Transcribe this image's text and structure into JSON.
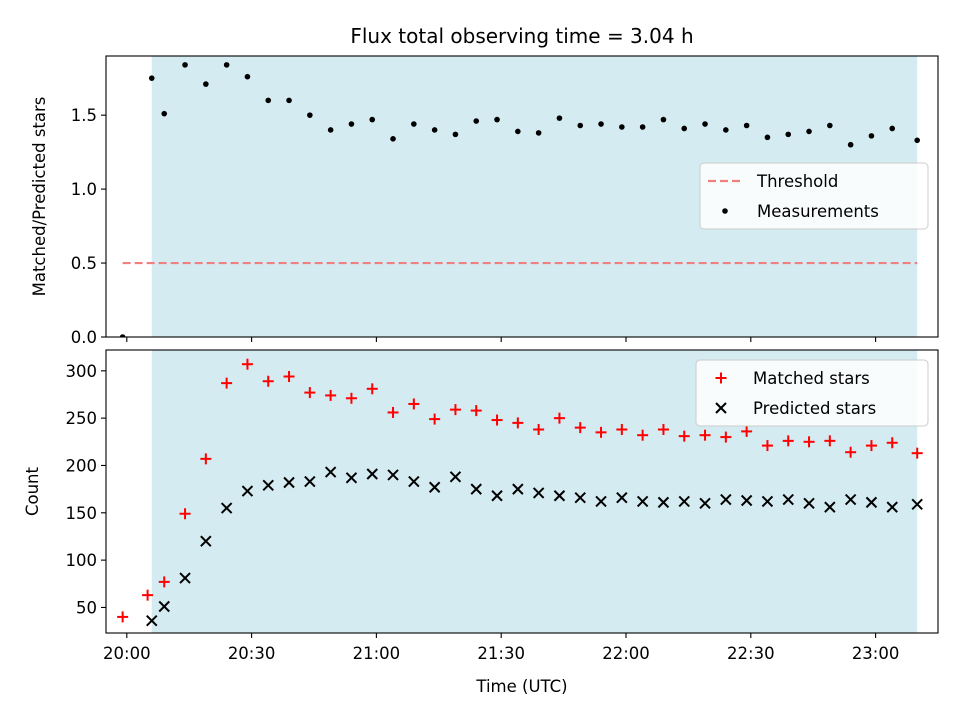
{
  "chart_data": [
    {
      "type": "scatter",
      "title": "Flux total observing time = 3.04 h",
      "xlabel": "",
      "ylabel": "Matched/Predicted stars",
      "ylim": [
        0,
        1.9
      ],
      "yticks": [
        "0.0",
        "0.5",
        "1.0",
        "1.5"
      ],
      "ytick_values": [
        0,
        0.5,
        1.0,
        1.5
      ],
      "xlim": [
        "19:55",
        "23:15"
      ],
      "xtick_values": [
        "20:00",
        "20:30",
        "21:00",
        "21:30",
        "22:00",
        "22:30",
        "23:00"
      ],
      "shaded_region": {
        "start": "20:06",
        "end": "23:10",
        "color": "#d4ebf1"
      },
      "legend_position": "center-right",
      "legend": [
        "Threshold",
        "Measurements"
      ],
      "series": [
        {
          "name": "Threshold",
          "style": "dashed-line",
          "color": "#f08080",
          "x": [
            "19:59",
            "23:10"
          ],
          "values": [
            0.5,
            0.5
          ]
        },
        {
          "name": "Measurements",
          "style": "dot",
          "color": "#000000",
          "x": [
            "19:59",
            "20:06",
            "20:09",
            "20:14",
            "20:19",
            "20:24",
            "20:29",
            "20:34",
            "20:39",
            "20:44",
            "20:49",
            "20:54",
            "20:59",
            "21:04",
            "21:09",
            "21:14",
            "21:19",
            "21:24",
            "21:29",
            "21:34",
            "21:39",
            "21:44",
            "21:49",
            "21:54",
            "21:59",
            "22:04",
            "22:09",
            "22:14",
            "22:19",
            "22:24",
            "22:29",
            "22:34",
            "22:39",
            "22:44",
            "22:49",
            "22:54",
            "22:59",
            "23:04",
            "23:10"
          ],
          "values": [
            0.0,
            1.75,
            1.51,
            1.84,
            1.71,
            1.84,
            1.76,
            1.6,
            1.6,
            1.5,
            1.4,
            1.44,
            1.47,
            1.34,
            1.44,
            1.4,
            1.37,
            1.46,
            1.47,
            1.39,
            1.38,
            1.48,
            1.43,
            1.44,
            1.42,
            1.42,
            1.47,
            1.41,
            1.44,
            1.4,
            1.43,
            1.35,
            1.37,
            1.39,
            1.43,
            1.3,
            1.36,
            1.41,
            1.33
          ]
        }
      ]
    },
    {
      "type": "scatter",
      "title": "",
      "xlabel": "Time (UTC)",
      "ylabel": "Count",
      "ylim": [
        23,
        322
      ],
      "yticks": [
        "50",
        "100",
        "150",
        "200",
        "250",
        "300"
      ],
      "ytick_values": [
        50,
        100,
        150,
        200,
        250,
        300
      ],
      "xlim": [
        "19:55",
        "23:15"
      ],
      "xticks": [
        "20:00",
        "20:30",
        "21:00",
        "21:30",
        "22:00",
        "22:30",
        "23:00"
      ],
      "shaded_region": {
        "start": "20:06",
        "end": "23:10",
        "color": "#d4ebf1"
      },
      "legend_position": "top-right",
      "legend": [
        "Matched stars",
        "Predicted stars"
      ],
      "series": [
        {
          "name": "Matched stars",
          "style": "plus",
          "color": "#ff0000",
          "x": [
            "19:59",
            "20:05",
            "20:09",
            "20:14",
            "20:19",
            "20:24",
            "20:29",
            "20:34",
            "20:39",
            "20:44",
            "20:49",
            "20:54",
            "20:59",
            "21:04",
            "21:09",
            "21:14",
            "21:19",
            "21:24",
            "21:29",
            "21:34",
            "21:39",
            "21:44",
            "21:49",
            "21:54",
            "21:59",
            "22:04",
            "22:09",
            "22:14",
            "22:19",
            "22:24",
            "22:29",
            "22:34",
            "22:39",
            "22:44",
            "22:49",
            "22:54",
            "22:59",
            "23:04",
            "23:10"
          ],
          "values": [
            40,
            63,
            77,
            149,
            207,
            287,
            307,
            289,
            294,
            277,
            274,
            271,
            281,
            256,
            265,
            249,
            259,
            258,
            248,
            245,
            238,
            250,
            240,
            235,
            238,
            232,
            238,
            231,
            232,
            230,
            236,
            221,
            226,
            225,
            226,
            214,
            221,
            224,
            213
          ]
        },
        {
          "name": "Predicted stars",
          "style": "x",
          "color": "#000000",
          "x": [
            "20:06",
            "20:09",
            "20:14",
            "20:19",
            "20:24",
            "20:29",
            "20:34",
            "20:39",
            "20:44",
            "20:49",
            "20:54",
            "20:59",
            "21:04",
            "21:09",
            "21:14",
            "21:19",
            "21:24",
            "21:29",
            "21:34",
            "21:39",
            "21:44",
            "21:49",
            "21:54",
            "21:59",
            "22:04",
            "22:09",
            "22:14",
            "22:19",
            "22:24",
            "22:29",
            "22:34",
            "22:39",
            "22:44",
            "22:49",
            "22:54",
            "22:59",
            "23:04",
            "23:10"
          ],
          "values": [
            36,
            51,
            81,
            120,
            155,
            173,
            179,
            182,
            183,
            193,
            187,
            191,
            190,
            183,
            177,
            188,
            175,
            168,
            175,
            171,
            168,
            166,
            162,
            166,
            162,
            161,
            162,
            160,
            164,
            163,
            162,
            164,
            160,
            156,
            164,
            161,
            156,
            159
          ]
        }
      ]
    }
  ]
}
